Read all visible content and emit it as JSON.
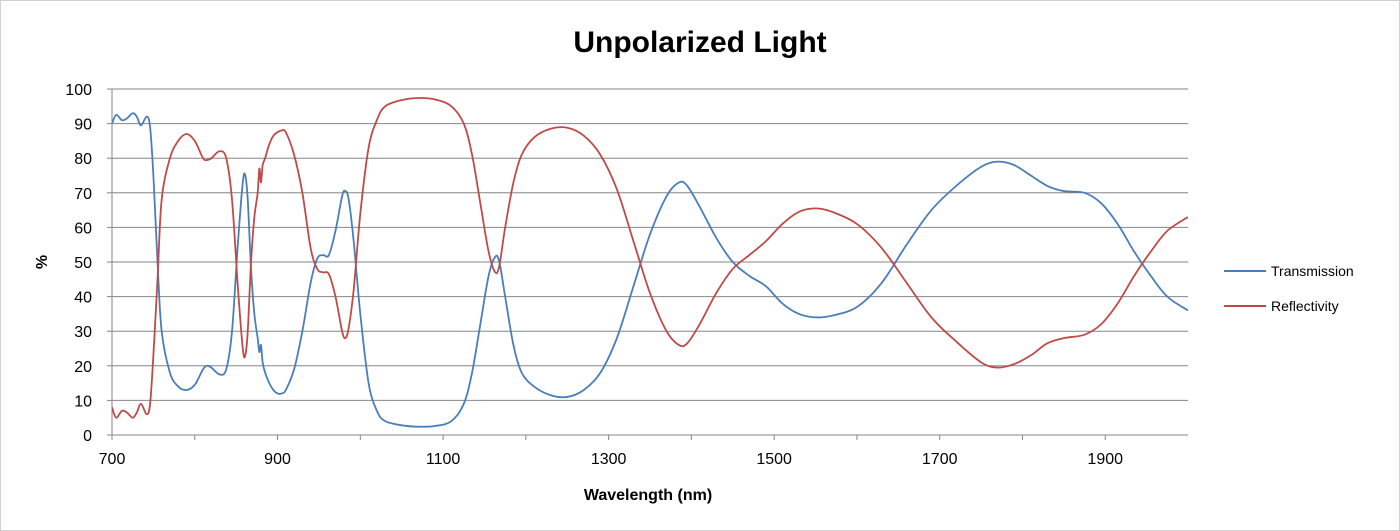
{
  "chart_data": {
    "type": "line",
    "title": "Unpolarized Light",
    "xlabel": "Wavelength (nm)",
    "ylabel": "%",
    "xlim": [
      700,
      2000
    ],
    "ylim": [
      0,
      100
    ],
    "x_ticks": [
      700,
      900,
      1100,
      1300,
      1500,
      1700,
      1900
    ],
    "y_ticks": [
      0,
      10,
      20,
      30,
      40,
      50,
      60,
      70,
      80,
      90,
      100
    ],
    "grid": "horizontal",
    "legend": "right",
    "series": [
      {
        "name": "Transmission",
        "color": "#4a7ebb",
        "points": [
          [
            700,
            90
          ],
          [
            705,
            92.5
          ],
          [
            712,
            91
          ],
          [
            718,
            91.5
          ],
          [
            725,
            93
          ],
          [
            730,
            92
          ],
          [
            735,
            89.5
          ],
          [
            742,
            92
          ],
          [
            746,
            89
          ],
          [
            750,
            75
          ],
          [
            755,
            50
          ],
          [
            760,
            30
          ],
          [
            770,
            18
          ],
          [
            780,
            14
          ],
          [
            790,
            13
          ],
          [
            800,
            14.5
          ],
          [
            810,
            19
          ],
          [
            815,
            20
          ],
          [
            820,
            19.5
          ],
          [
            830,
            17.5
          ],
          [
            838,
            19
          ],
          [
            845,
            30
          ],
          [
            852,
            55
          ],
          [
            858,
            73
          ],
          [
            861,
            75
          ],
          [
            864,
            68
          ],
          [
            868,
            48
          ],
          [
            872,
            35
          ],
          [
            876,
            28
          ],
          [
            878,
            24
          ],
          [
            880,
            26
          ],
          [
            882,
            21
          ],
          [
            885,
            18
          ],
          [
            890,
            15
          ],
          [
            895,
            13
          ],
          [
            900,
            12
          ],
          [
            905,
            12
          ],
          [
            910,
            13
          ],
          [
            920,
            19
          ],
          [
            930,
            30
          ],
          [
            940,
            44
          ],
          [
            948,
            51
          ],
          [
            955,
            52
          ],
          [
            962,
            52
          ],
          [
            970,
            59
          ],
          [
            978,
            69
          ],
          [
            982,
            70.5
          ],
          [
            986,
            68
          ],
          [
            992,
            56
          ],
          [
            1000,
            35
          ],
          [
            1010,
            15
          ],
          [
            1020,
            7
          ],
          [
            1030,
            4
          ],
          [
            1050,
            2.8
          ],
          [
            1070,
            2.4
          ],
          [
            1090,
            2.6
          ],
          [
            1110,
            4
          ],
          [
            1125,
            9
          ],
          [
            1135,
            18
          ],
          [
            1145,
            32
          ],
          [
            1155,
            46
          ],
          [
            1163,
            51.5
          ],
          [
            1168,
            50
          ],
          [
            1175,
            40
          ],
          [
            1185,
            26
          ],
          [
            1195,
            18
          ],
          [
            1210,
            14
          ],
          [
            1230,
            11.5
          ],
          [
            1250,
            11
          ],
          [
            1270,
            13
          ],
          [
            1290,
            18
          ],
          [
            1310,
            28
          ],
          [
            1330,
            43
          ],
          [
            1350,
            58
          ],
          [
            1370,
            69
          ],
          [
            1385,
            73
          ],
          [
            1395,
            72
          ],
          [
            1410,
            66
          ],
          [
            1430,
            57
          ],
          [
            1450,
            50
          ],
          [
            1470,
            46
          ],
          [
            1490,
            43
          ],
          [
            1510,
            38
          ],
          [
            1530,
            35
          ],
          [
            1550,
            34
          ],
          [
            1570,
            34.5
          ],
          [
            1600,
            37
          ],
          [
            1630,
            44
          ],
          [
            1660,
            55
          ],
          [
            1690,
            65
          ],
          [
            1720,
            72
          ],
          [
            1750,
            77.5
          ],
          [
            1770,
            79
          ],
          [
            1790,
            78
          ],
          [
            1810,
            75
          ],
          [
            1830,
            72
          ],
          [
            1850,
            70.5
          ],
          [
            1875,
            70
          ],
          [
            1895,
            67
          ],
          [
            1915,
            61
          ],
          [
            1935,
            53
          ],
          [
            1955,
            46
          ],
          [
            1975,
            40
          ],
          [
            2000,
            36
          ]
        ]
      },
      {
        "name": "Reflectivity",
        "color": "#be4b48",
        "points": [
          [
            700,
            8
          ],
          [
            705,
            5
          ],
          [
            712,
            7
          ],
          [
            718,
            6.5
          ],
          [
            725,
            5
          ],
          [
            730,
            6.5
          ],
          [
            735,
            9
          ],
          [
            742,
            6
          ],
          [
            746,
            9
          ],
          [
            750,
            23
          ],
          [
            755,
            45
          ],
          [
            760,
            68
          ],
          [
            770,
            80
          ],
          [
            780,
            85
          ],
          [
            790,
            87
          ],
          [
            800,
            85
          ],
          [
            810,
            80
          ],
          [
            815,
            79.5
          ],
          [
            820,
            80
          ],
          [
            830,
            82
          ],
          [
            838,
            80
          ],
          [
            845,
            68
          ],
          [
            852,
            43
          ],
          [
            858,
            25
          ],
          [
            861,
            23
          ],
          [
            864,
            30
          ],
          [
            868,
            50
          ],
          [
            872,
            63
          ],
          [
            876,
            70
          ],
          [
            878,
            77
          ],
          [
            880,
            73
          ],
          [
            882,
            78
          ],
          [
            885,
            80
          ],
          [
            890,
            84
          ],
          [
            895,
            86.5
          ],
          [
            900,
            87.5
          ],
          [
            905,
            88
          ],
          [
            910,
            87.5
          ],
          [
            920,
            81
          ],
          [
            930,
            70
          ],
          [
            940,
            54
          ],
          [
            948,
            48
          ],
          [
            955,
            47
          ],
          [
            962,
            46.5
          ],
          [
            970,
            40
          ],
          [
            978,
            30
          ],
          [
            982,
            28
          ],
          [
            986,
            31
          ],
          [
            992,
            42
          ],
          [
            1000,
            64
          ],
          [
            1010,
            83
          ],
          [
            1020,
            91
          ],
          [
            1030,
            95
          ],
          [
            1050,
            96.8
          ],
          [
            1070,
            97.4
          ],
          [
            1090,
            97
          ],
          [
            1110,
            95
          ],
          [
            1125,
            90
          ],
          [
            1135,
            81
          ],
          [
            1145,
            67
          ],
          [
            1155,
            53
          ],
          [
            1163,
            47
          ],
          [
            1168,
            49
          ],
          [
            1175,
            60
          ],
          [
            1185,
            73
          ],
          [
            1195,
            81
          ],
          [
            1210,
            86
          ],
          [
            1230,
            88.5
          ],
          [
            1250,
            88.8
          ],
          [
            1270,
            86.5
          ],
          [
            1290,
            81
          ],
          [
            1310,
            71
          ],
          [
            1330,
            56
          ],
          [
            1350,
            41
          ],
          [
            1370,
            30
          ],
          [
            1385,
            26
          ],
          [
            1395,
            26.5
          ],
          [
            1410,
            32
          ],
          [
            1430,
            41
          ],
          [
            1450,
            48
          ],
          [
            1470,
            52
          ],
          [
            1490,
            56
          ],
          [
            1510,
            61
          ],
          [
            1530,
            64.5
          ],
          [
            1550,
            65.5
          ],
          [
            1570,
            64.5
          ],
          [
            1600,
            61
          ],
          [
            1630,
            54
          ],
          [
            1660,
            44
          ],
          [
            1690,
            34
          ],
          [
            1720,
            27
          ],
          [
            1750,
            21
          ],
          [
            1770,
            19.5
          ],
          [
            1790,
            20.5
          ],
          [
            1810,
            23
          ],
          [
            1830,
            26.5
          ],
          [
            1850,
            28
          ],
          [
            1875,
            29
          ],
          [
            1895,
            32
          ],
          [
            1915,
            38
          ],
          [
            1935,
            46
          ],
          [
            1955,
            53
          ],
          [
            1975,
            59
          ],
          [
            2000,
            63
          ]
        ]
      }
    ]
  }
}
